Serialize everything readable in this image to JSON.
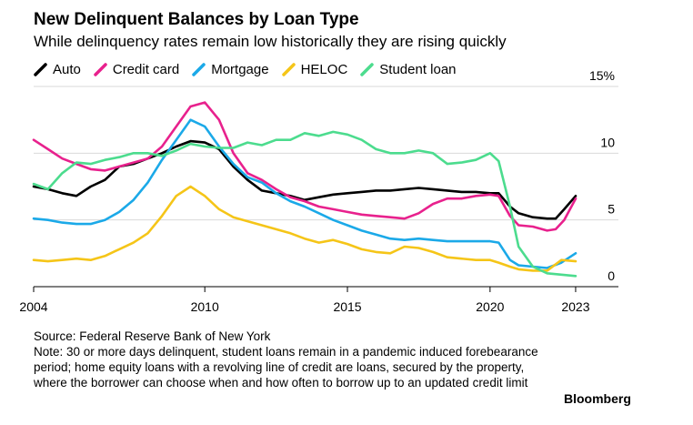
{
  "title": "New Delinquent Balances by Loan Type",
  "subtitle": "While delinquency rates remain low historically they are rising quickly",
  "source": "Source: Federal Reserve Bank of New York",
  "note": "Note: 30 or more days delinquent, student loans remain in a pandemic induced forebearance period; home equity loans with a revolving line of credit are loans, secured by the property, where the borrower can choose when and how often to borrow up to an updated credit limit",
  "brand": "Bloomberg",
  "chart_data": {
    "type": "line",
    "title": "New Delinquent Balances by Loan Type",
    "xlabel": "",
    "ylabel": "",
    "xlim": [
      2004,
      2024.5
    ],
    "ylim": [
      0,
      15
    ],
    "x_ticks": [
      "2004",
      "2010",
      "2015",
      "2020",
      "2023"
    ],
    "x_tick_values": [
      2004,
      2010,
      2015,
      2020,
      2023
    ],
    "y_ticks": [
      "0",
      "5",
      "10",
      "15%"
    ],
    "y_tick_values": [
      0,
      5,
      10,
      15
    ],
    "y_axis_position": "right",
    "grid": "horizontal",
    "legend_position": "top-left",
    "series": [
      {
        "name": "Auto",
        "color": "#000000",
        "points": [
          [
            2004,
            7.5
          ],
          [
            2004.5,
            7.3
          ],
          [
            2005,
            7.0
          ],
          [
            2005.5,
            6.8
          ],
          [
            2006,
            7.5
          ],
          [
            2006.5,
            8.0
          ],
          [
            2007,
            9.0
          ],
          [
            2007.5,
            9.2
          ],
          [
            2008,
            9.6
          ],
          [
            2008.5,
            10.0
          ],
          [
            2009,
            10.5
          ],
          [
            2009.5,
            10.9
          ],
          [
            2010,
            10.8
          ],
          [
            2010.5,
            10.3
          ],
          [
            2011,
            9.0
          ],
          [
            2011.5,
            8.0
          ],
          [
            2012,
            7.2
          ],
          [
            2012.5,
            7.0
          ],
          [
            2013,
            6.8
          ],
          [
            2013.5,
            6.5
          ],
          [
            2014,
            6.7
          ],
          [
            2014.5,
            6.9
          ],
          [
            2015,
            7.0
          ],
          [
            2015.5,
            7.1
          ],
          [
            2016,
            7.2
          ],
          [
            2016.5,
            7.2
          ],
          [
            2017,
            7.3
          ],
          [
            2017.5,
            7.4
          ],
          [
            2018,
            7.3
          ],
          [
            2018.5,
            7.2
          ],
          [
            2019,
            7.1
          ],
          [
            2019.5,
            7.1
          ],
          [
            2020,
            7.0
          ],
          [
            2020.3,
            7.0
          ],
          [
            2020.7,
            6.0
          ],
          [
            2021,
            5.5
          ],
          [
            2021.5,
            5.2
          ],
          [
            2022,
            5.1
          ],
          [
            2022.3,
            5.1
          ],
          [
            2022.6,
            5.8
          ],
          [
            2023,
            6.8
          ]
        ]
      },
      {
        "name": "Credit card",
        "color": "#e8218d",
        "points": [
          [
            2004,
            11.0
          ],
          [
            2004.5,
            10.3
          ],
          [
            2005,
            9.6
          ],
          [
            2005.5,
            9.2
          ],
          [
            2006,
            8.8
          ],
          [
            2006.5,
            8.7
          ],
          [
            2007,
            9.0
          ],
          [
            2007.5,
            9.3
          ],
          [
            2008,
            9.6
          ],
          [
            2008.5,
            10.5
          ],
          [
            2009,
            12.0
          ],
          [
            2009.5,
            13.5
          ],
          [
            2010,
            13.8
          ],
          [
            2010.5,
            12.5
          ],
          [
            2011,
            10.0
          ],
          [
            2011.5,
            8.5
          ],
          [
            2012,
            8.0
          ],
          [
            2012.5,
            7.3
          ],
          [
            2013,
            6.7
          ],
          [
            2013.5,
            6.4
          ],
          [
            2014,
            6.0
          ],
          [
            2014.5,
            5.8
          ],
          [
            2015,
            5.6
          ],
          [
            2015.5,
            5.4
          ],
          [
            2016,
            5.3
          ],
          [
            2016.5,
            5.2
          ],
          [
            2017,
            5.1
          ],
          [
            2017.5,
            5.5
          ],
          [
            2018,
            6.2
          ],
          [
            2018.5,
            6.6
          ],
          [
            2019,
            6.6
          ],
          [
            2019.5,
            6.8
          ],
          [
            2020,
            6.9
          ],
          [
            2020.3,
            6.8
          ],
          [
            2020.7,
            5.3
          ],
          [
            2021,
            4.6
          ],
          [
            2021.5,
            4.5
          ],
          [
            2022,
            4.2
          ],
          [
            2022.3,
            4.3
          ],
          [
            2022.6,
            5.0
          ],
          [
            2023,
            6.6
          ]
        ]
      },
      {
        "name": "Mortgage",
        "color": "#1ba9e8",
        "points": [
          [
            2004,
            5.1
          ],
          [
            2004.5,
            5.0
          ],
          [
            2005,
            4.8
          ],
          [
            2005.5,
            4.7
          ],
          [
            2006,
            4.7
          ],
          [
            2006.5,
            5.0
          ],
          [
            2007,
            5.6
          ],
          [
            2007.5,
            6.5
          ],
          [
            2008,
            7.8
          ],
          [
            2008.5,
            9.5
          ],
          [
            2009,
            11.0
          ],
          [
            2009.5,
            12.5
          ],
          [
            2010,
            12.0
          ],
          [
            2010.5,
            10.5
          ],
          [
            2011,
            9.2
          ],
          [
            2011.5,
            8.2
          ],
          [
            2012,
            7.8
          ],
          [
            2012.5,
            7.0
          ],
          [
            2013,
            6.4
          ],
          [
            2013.5,
            6.0
          ],
          [
            2014,
            5.5
          ],
          [
            2014.5,
            5.0
          ],
          [
            2015,
            4.6
          ],
          [
            2015.5,
            4.2
          ],
          [
            2016,
            3.9
          ],
          [
            2016.5,
            3.6
          ],
          [
            2017,
            3.5
          ],
          [
            2017.5,
            3.6
          ],
          [
            2018,
            3.5
          ],
          [
            2018.5,
            3.4
          ],
          [
            2019,
            3.4
          ],
          [
            2019.5,
            3.4
          ],
          [
            2020,
            3.4
          ],
          [
            2020.3,
            3.3
          ],
          [
            2020.7,
            2.0
          ],
          [
            2021,
            1.6
          ],
          [
            2021.5,
            1.5
          ],
          [
            2022,
            1.4
          ],
          [
            2022.5,
            1.8
          ],
          [
            2023,
            2.5
          ]
        ]
      },
      {
        "name": "HELOC",
        "color": "#f5c518",
        "points": [
          [
            2004,
            2.0
          ],
          [
            2004.5,
            1.9
          ],
          [
            2005,
            2.0
          ],
          [
            2005.5,
            2.1
          ],
          [
            2006,
            2.0
          ],
          [
            2006.5,
            2.3
          ],
          [
            2007,
            2.8
          ],
          [
            2007.5,
            3.3
          ],
          [
            2008,
            4.0
          ],
          [
            2008.5,
            5.3
          ],
          [
            2009,
            6.8
          ],
          [
            2009.5,
            7.5
          ],
          [
            2010,
            6.8
          ],
          [
            2010.5,
            5.8
          ],
          [
            2011,
            5.2
          ],
          [
            2011.5,
            4.9
          ],
          [
            2012,
            4.6
          ],
          [
            2012.5,
            4.3
          ],
          [
            2013,
            4.0
          ],
          [
            2013.5,
            3.6
          ],
          [
            2014,
            3.3
          ],
          [
            2014.5,
            3.5
          ],
          [
            2015,
            3.2
          ],
          [
            2015.5,
            2.8
          ],
          [
            2016,
            2.6
          ],
          [
            2016.5,
            2.5
          ],
          [
            2017,
            3.0
          ],
          [
            2017.5,
            2.9
          ],
          [
            2018,
            2.6
          ],
          [
            2018.5,
            2.2
          ],
          [
            2019,
            2.1
          ],
          [
            2019.5,
            2.0
          ],
          [
            2020,
            2.0
          ],
          [
            2020.3,
            1.8
          ],
          [
            2020.7,
            1.5
          ],
          [
            2021,
            1.3
          ],
          [
            2021.5,
            1.2
          ],
          [
            2022,
            1.2
          ],
          [
            2022.5,
            2.0
          ],
          [
            2023,
            1.9
          ]
        ]
      },
      {
        "name": "Student loan",
        "color": "#4cdc8e",
        "points": [
          [
            2004,
            7.7
          ],
          [
            2004.5,
            7.3
          ],
          [
            2005,
            8.5
          ],
          [
            2005.5,
            9.3
          ],
          [
            2006,
            9.2
          ],
          [
            2006.5,
            9.5
          ],
          [
            2007,
            9.7
          ],
          [
            2007.5,
            10.0
          ],
          [
            2008,
            10.0
          ],
          [
            2008.5,
            9.8
          ],
          [
            2009,
            10.2
          ],
          [
            2009.5,
            10.7
          ],
          [
            2010,
            10.5
          ],
          [
            2010.5,
            10.4
          ],
          [
            2011,
            10.4
          ],
          [
            2011.5,
            10.8
          ],
          [
            2012,
            10.6
          ],
          [
            2012.5,
            11.0
          ],
          [
            2013,
            11.0
          ],
          [
            2013.5,
            11.5
          ],
          [
            2014,
            11.3
          ],
          [
            2014.5,
            11.6
          ],
          [
            2015,
            11.4
          ],
          [
            2015.5,
            11.0
          ],
          [
            2016,
            10.3
          ],
          [
            2016.5,
            10.0
          ],
          [
            2017,
            10.0
          ],
          [
            2017.5,
            10.2
          ],
          [
            2018,
            10.0
          ],
          [
            2018.5,
            9.2
          ],
          [
            2019,
            9.3
          ],
          [
            2019.5,
            9.5
          ],
          [
            2020,
            10.0
          ],
          [
            2020.3,
            9.4
          ],
          [
            2020.7,
            6.0
          ],
          [
            2021,
            3.0
          ],
          [
            2021.5,
            1.5
          ],
          [
            2022,
            1.0
          ],
          [
            2022.5,
            0.9
          ],
          [
            2023,
            0.8
          ]
        ]
      }
    ]
  }
}
